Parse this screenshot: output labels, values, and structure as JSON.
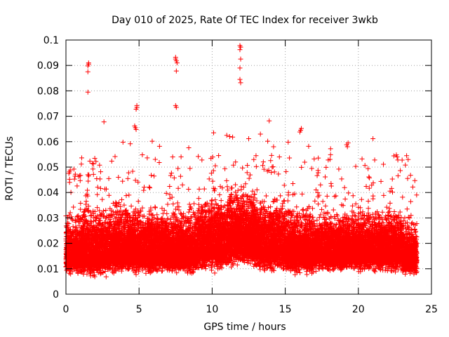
{
  "chart_data": {
    "type": "scatter",
    "title": "Day 010 of 2025, Rate Of TEC Index for receiver 3wkb",
    "xlabel": "GPS time / hours",
    "ylabel": "ROTI / TECUs",
    "xlim": [
      0,
      25
    ],
    "ylim": [
      0,
      0.1
    ],
    "x_ticks": [
      "0",
      "5",
      "10",
      "15",
      "20",
      "25"
    ],
    "y_ticks": [
      "0",
      "0.01",
      "0.02",
      "0.03",
      "0.04",
      "0.05",
      "0.06",
      "0.07",
      "0.08",
      "0.09",
      "0.1"
    ],
    "grid": true,
    "marker": "+",
    "color": "#ff0000",
    "points": [
      [
        1.55,
        0.091
      ],
      [
        1.55,
        0.0905
      ],
      [
        1.5,
        0.0898
      ],
      [
        1.5,
        0.0875
      ],
      [
        1.5,
        0.0795
      ],
      [
        7.5,
        0.0932
      ],
      [
        7.5,
        0.0925
      ],
      [
        7.55,
        0.0918
      ],
      [
        7.6,
        0.091
      ],
      [
        7.55,
        0.0878
      ],
      [
        11.9,
        0.0978
      ],
      [
        11.95,
        0.0972
      ],
      [
        11.9,
        0.0962
      ],
      [
        11.95,
        0.0925
      ],
      [
        11.9,
        0.089
      ],
      [
        11.9,
        0.0845
      ],
      [
        11.95,
        0.0832
      ],
      [
        4.85,
        0.0742
      ],
      [
        4.85,
        0.0735
      ],
      [
        4.8,
        0.0728
      ],
      [
        7.5,
        0.0742
      ],
      [
        7.55,
        0.0735
      ],
      [
        4.7,
        0.0662
      ],
      [
        4.75,
        0.0655
      ],
      [
        4.8,
        0.0648
      ],
      [
        2.6,
        0.0678
      ],
      [
        13.9,
        0.0682
      ],
      [
        16.1,
        0.0652
      ],
      [
        16.05,
        0.0645
      ],
      [
        16.0,
        0.0638
      ],
      [
        10.1,
        0.0635
      ],
      [
        21.0,
        0.0612
      ],
      [
        19.2,
        0.0588
      ],
      [
        19.25,
        0.058
      ],
      [
        19.3,
        0.0595
      ],
      [
        11.0,
        0.0625
      ],
      [
        11.2,
        0.062
      ],
      [
        11.4,
        0.0618
      ],
      [
        12.5,
        0.0612
      ],
      [
        13.3,
        0.063
      ],
      [
        13.8,
        0.0602
      ],
      [
        14.2,
        0.058
      ],
      [
        15.2,
        0.0598
      ],
      [
        16.6,
        0.0582
      ],
      [
        18.1,
        0.0572
      ],
      [
        3.9,
        0.0598
      ],
      [
        4.4,
        0.0592
      ],
      [
        5.9,
        0.0602
      ],
      [
        6.4,
        0.0582
      ],
      [
        8.4,
        0.0576
      ],
      [
        1.5,
        0.047
      ],
      [
        0.2,
        0.0475
      ],
      [
        0.25,
        0.0452
      ],
      [
        0.25,
        0.044
      ],
      [
        22.6,
        0.0548
      ],
      [
        22.65,
        0.054
      ],
      [
        22.7,
        0.0528
      ],
      [
        23.3,
        0.0545
      ],
      [
        7.3,
        0.054
      ],
      [
        9.3,
        0.0528
      ],
      [
        11.6,
        0.052
      ],
      [
        13.0,
        0.0545
      ],
      [
        14.6,
        0.054
      ]
    ],
    "density_bands": [
      {
        "x": [
          0,
          1
        ],
        "y": [
          0.007,
          0.033
        ]
      },
      {
        "x": [
          1,
          3
        ],
        "y": [
          0.006,
          0.036
        ]
      },
      {
        "x": [
          3,
          5
        ],
        "y": [
          0.007,
          0.038
        ]
      },
      {
        "x": [
          5,
          7
        ],
        "y": [
          0.007,
          0.036
        ]
      },
      {
        "x": [
          7,
          9
        ],
        "y": [
          0.007,
          0.035
        ]
      },
      {
        "x": [
          9,
          11
        ],
        "y": [
          0.008,
          0.04
        ]
      },
      {
        "x": [
          11,
          13
        ],
        "y": [
          0.01,
          0.045
        ]
      },
      {
        "x": [
          13,
          15
        ],
        "y": [
          0.008,
          0.04
        ]
      },
      {
        "x": [
          15,
          17
        ],
        "y": [
          0.007,
          0.036
        ]
      },
      {
        "x": [
          17,
          19
        ],
        "y": [
          0.008,
          0.034
        ]
      },
      {
        "x": [
          19,
          21
        ],
        "y": [
          0.008,
          0.035
        ]
      },
      {
        "x": [
          21,
          23
        ],
        "y": [
          0.008,
          0.034
        ]
      },
      {
        "x": [
          23,
          24
        ],
        "y": [
          0.007,
          0.03
        ]
      }
    ]
  }
}
